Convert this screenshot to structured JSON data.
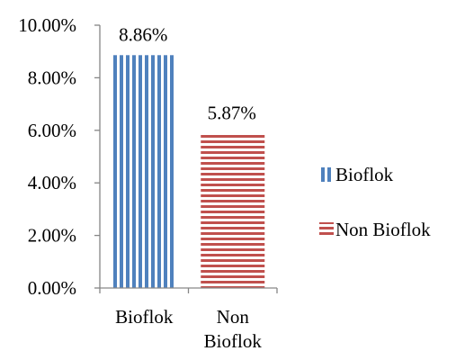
{
  "chart_data": {
    "type": "bar",
    "categories": [
      "Bioflok",
      "Non Bioflok"
    ],
    "category_lines": [
      [
        "Bioflok"
      ],
      [
        "Non",
        "Bioflok"
      ]
    ],
    "series": [
      {
        "name": "Bioflok",
        "category": "Bioflok",
        "value": 8.86,
        "label": "8.86%",
        "color": "#4f81bd",
        "pattern": "vertical-stripes"
      },
      {
        "name": "Non Bioflok",
        "category": "Non Bioflok",
        "value": 5.87,
        "label": "5.87%",
        "color": "#c0504d",
        "pattern": "horizontal-stripes"
      }
    ],
    "y_ticks": [
      "0.00%",
      "2.00%",
      "4.00%",
      "6.00%",
      "8.00%",
      "10.00%"
    ],
    "ylim": [
      0,
      10
    ],
    "y_unit": "%",
    "grid": false,
    "legend_position": "right",
    "title": "",
    "xlabel": "",
    "ylabel": ""
  }
}
